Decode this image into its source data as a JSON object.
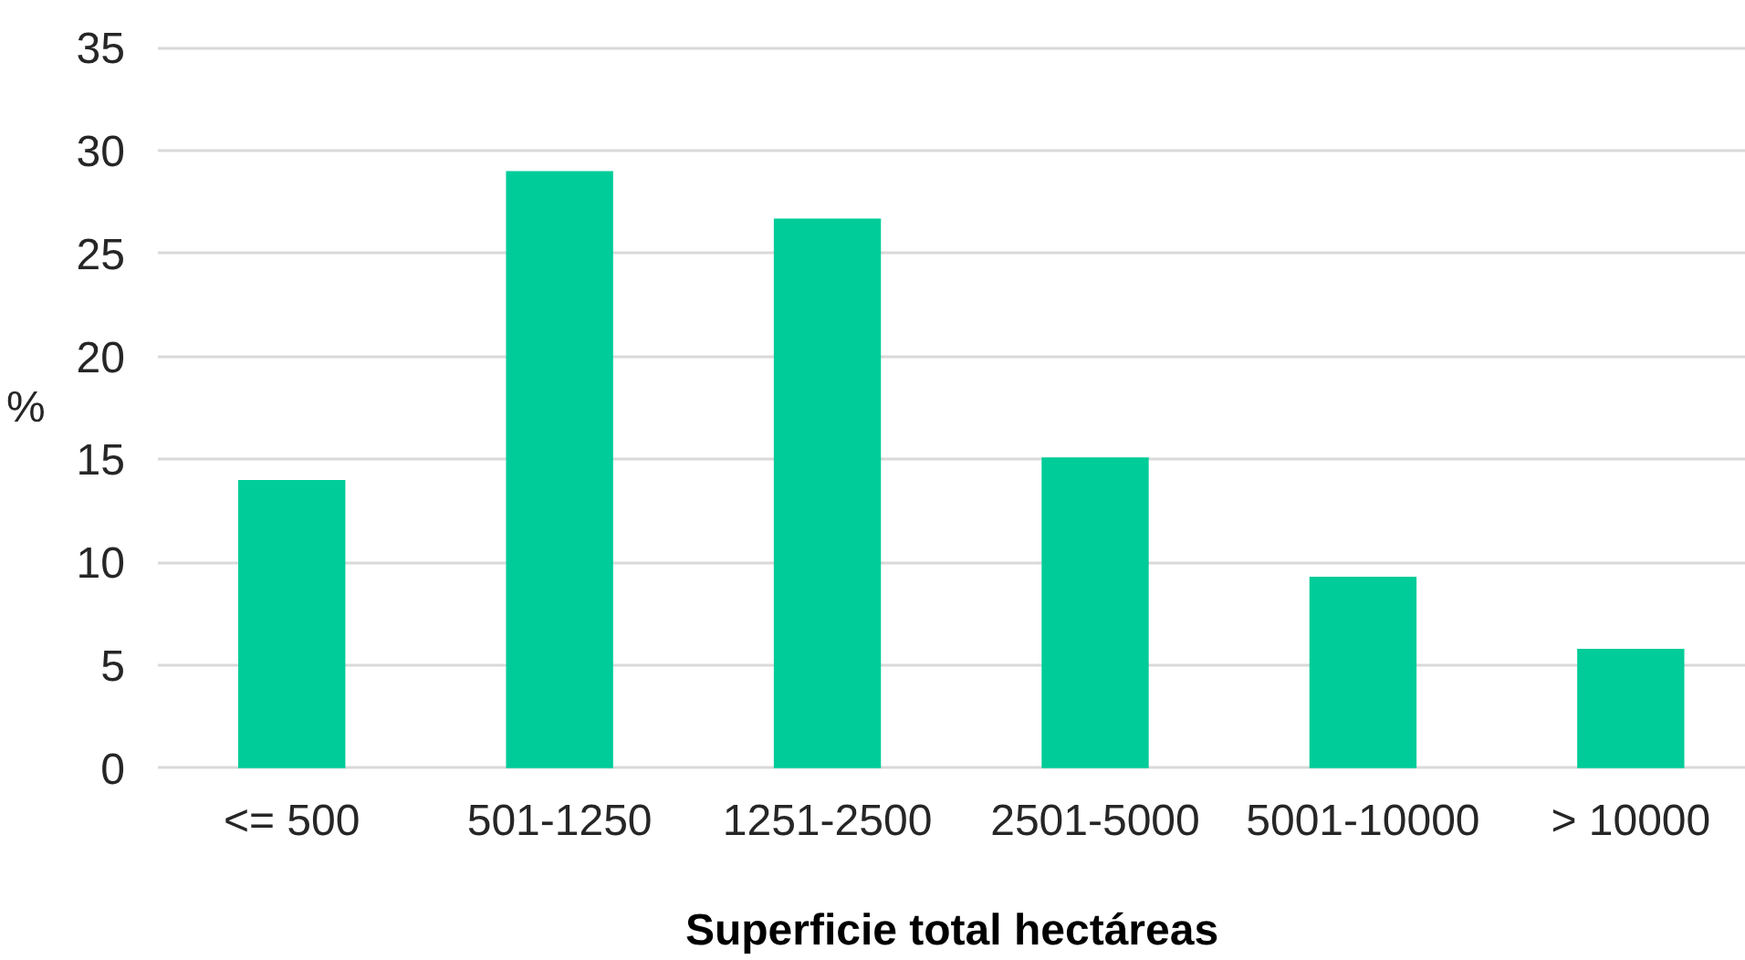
{
  "chart_data": {
    "type": "bar",
    "categories": [
      "<= 500",
      "501-1250",
      "1251-2500",
      "2501-5000",
      "5001-10000",
      "> 10000"
    ],
    "values": [
      14.0,
      29.0,
      26.7,
      15.1,
      9.3,
      5.8
    ],
    "color": "#00cc99",
    "xlabel": "Superficie total hectáreas",
    "ylabel": "%",
    "ylim": [
      0,
      35
    ],
    "yticks": [
      0,
      5,
      10,
      15,
      20,
      25,
      30,
      35
    ],
    "grid": "y"
  }
}
